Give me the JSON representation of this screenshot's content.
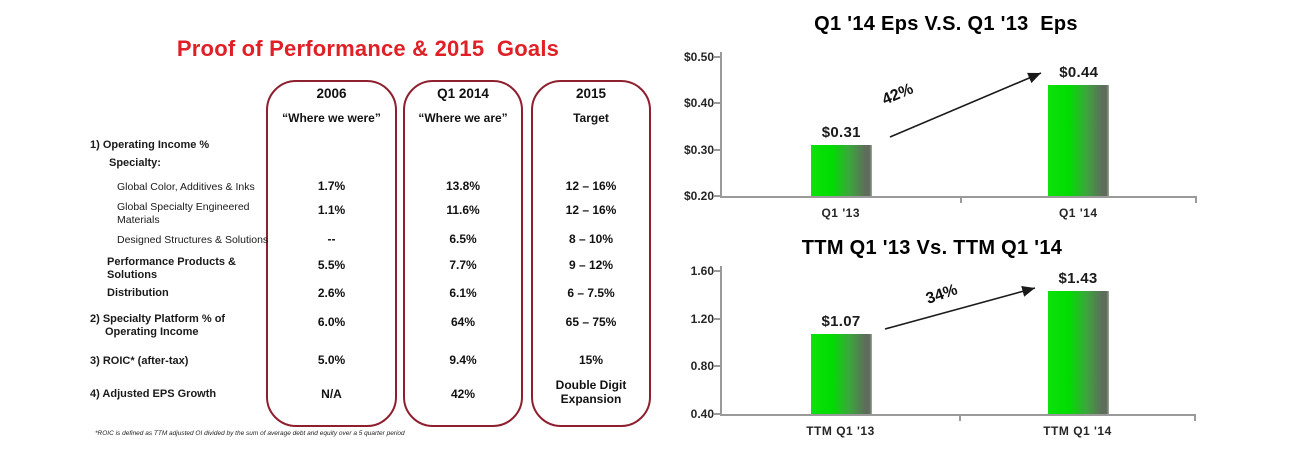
{
  "colors": {
    "title_red": "#e02026",
    "box_border_maroon": "#8e1f2e",
    "bar_green": "#00dc00",
    "bar_shadow_green": "#5f6b5c",
    "axis_gray": "#9a9a9a"
  },
  "left_panel": {
    "title": "Proof of Performance & 2015  Goals",
    "columns": [
      {
        "header": "2006",
        "subheader": "“Where we were”"
      },
      {
        "header": "Q1 2014",
        "subheader": "“Where we are”"
      },
      {
        "header": "2015",
        "subheader": "Target"
      }
    ],
    "section1": "1) Operating Income %",
    "specialty": "Specialty:",
    "rows": [
      {
        "label": "Global Color, Additives & Inks",
        "values": [
          "1.7%",
          "13.8%",
          "12 – 16%"
        ]
      },
      {
        "label": "Global Specialty Engineered Materials",
        "values": [
          "1.1%",
          "11.6%",
          "12 – 16%"
        ]
      },
      {
        "label": "Designed Structures & Solutions",
        "values": [
          "--",
          "6.5%",
          "8 – 10%"
        ]
      },
      {
        "label": "Performance Products & Solutions",
        "values": [
          "5.5%",
          "7.7%",
          "9 – 12%"
        ]
      },
      {
        "label": "Distribution",
        "values": [
          "2.6%",
          "6.1%",
          "6 – 7.5%"
        ]
      },
      {
        "label": "2) Specialty Platform % of Operating Income",
        "values": [
          "6.0%",
          "64%",
          "65 – 75%"
        ]
      },
      {
        "label": "3) ROIC* (after-tax)",
        "values": [
          "5.0%",
          "9.4%",
          "15%"
        ]
      },
      {
        "label": "4) Adjusted EPS Growth",
        "values": [
          "N/A",
          "42%",
          "Double Digit Expansion"
        ]
      }
    ],
    "footnote": "*ROIC is defined as TTM adjusted OI divided by the sum of average debt and equity over a 5 quarter period"
  },
  "chart_data": [
    {
      "type": "bar",
      "title": "Q1 '14 Eps V.S. Q1 '13  Eps",
      "categories": [
        "Q1 '13",
        "Q1 '14"
      ],
      "values": [
        0.31,
        0.44
      ],
      "value_labels": [
        "$0.31",
        "$0.44"
      ],
      "ylim": [
        0.2,
        0.5
      ],
      "yticks": [
        "$0.50",
        "$0.40",
        "$0.30",
        "$0.20"
      ],
      "arrow_label": "42%",
      "xlabel": "",
      "ylabel": "",
      "grid": false,
      "legend": false
    },
    {
      "type": "bar",
      "title": "TTM Q1 '13 Vs. TTM Q1 '14",
      "categories": [
        "TTM Q1 '13",
        "TTM Q1 '14"
      ],
      "values": [
        1.07,
        1.43
      ],
      "value_labels": [
        "$1.07",
        "$1.43"
      ],
      "ylim": [
        0.4,
        1.6
      ],
      "yticks": [
        "1.60",
        "1.20",
        "0.80",
        "0.40"
      ],
      "arrow_label": "34%",
      "xlabel": "",
      "ylabel": "",
      "grid": false,
      "legend": false
    }
  ]
}
